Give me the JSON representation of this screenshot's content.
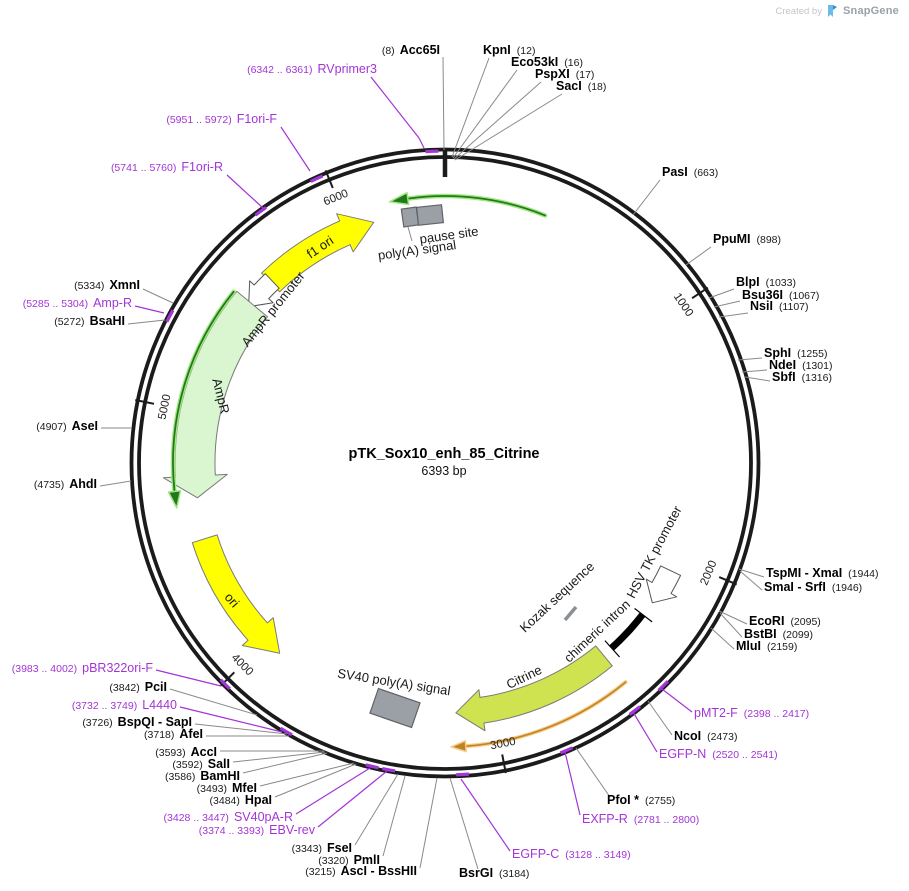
{
  "watermark": {
    "prefix": "Created by",
    "brand": "SnapGene"
  },
  "plasmid": {
    "name": "pTK_Sox10_enh_85_Citrine",
    "size": "6393 bp"
  },
  "ticks": [
    "1000",
    "2000",
    "3000",
    "4000",
    "5000",
    "6000"
  ],
  "enzymes": {
    "acc65i": {
      "pre": "(8)",
      "name": "Acc65I"
    },
    "kpni": {
      "name": "KpnI",
      "post": "(12)"
    },
    "eco53ki": {
      "name": "Eco53kI",
      "post": "(16)"
    },
    "pspxi": {
      "name": "PspXI",
      "post": "(17)"
    },
    "saci": {
      "name": "SacI",
      "post": "(18)"
    },
    "pasi": {
      "name": "PasI",
      "post": "(663)"
    },
    "ppumi": {
      "name": "PpuMI",
      "post": "(898)"
    },
    "blpi": {
      "name": "BlpI",
      "post": "(1033)"
    },
    "bsu36i": {
      "name": "Bsu36I",
      "post": "(1067)"
    },
    "nsii": {
      "name": "NsiI",
      "post": "(1107)"
    },
    "sphi": {
      "name": "SphI",
      "post": "(1255)"
    },
    "ndei": {
      "name": "NdeI",
      "post": "(1301)"
    },
    "sbfi": {
      "name": "SbfI",
      "post": "(1316)"
    },
    "tspmi_xmai": {
      "name": "TspMI - XmaI",
      "post": "(1944)"
    },
    "smai_srfi": {
      "name": "SmaI - SrfI",
      "post": "(1946)"
    },
    "ecori": {
      "name": "EcoRI",
      "post": "(2095)"
    },
    "bstbi": {
      "name": "BstBI",
      "post": "(2099)"
    },
    "mlui": {
      "name": "MluI",
      "post": "(2159)"
    },
    "ncoi": {
      "name": "NcoI",
      "post": "(2473)"
    },
    "pfoi": {
      "name": "PfoI *",
      "post": "(2755)"
    },
    "bsrgi": {
      "name": "BsrGI",
      "post": "(3184)"
    },
    "asci_bsshii": {
      "pre": "(3215)",
      "name": "AscI - BssHII"
    },
    "pmli": {
      "pre": "(3320)",
      "name": "PmlI"
    },
    "fsei": {
      "pre": "(3343)",
      "name": "FseI"
    },
    "hpai": {
      "pre": "(3484)",
      "name": "HpaI"
    },
    "mfei": {
      "pre": "(3493)",
      "name": "MfeI"
    },
    "bamhi": {
      "pre": "(3586)",
      "name": "BamHI"
    },
    "sali": {
      "pre": "(3592)",
      "name": "SalI"
    },
    "acci": {
      "pre": "(3593)",
      "name": "AccI"
    },
    "afei": {
      "pre": "(3718)",
      "name": "AfeI"
    },
    "bspqi_sapi": {
      "pre": "(3726)",
      "name": "BspQI - SapI"
    },
    "pcii": {
      "pre": "(3842)",
      "name": "PciI"
    },
    "ahdi": {
      "pre": "(4735)",
      "name": "AhdI"
    },
    "asei": {
      "pre": "(4907)",
      "name": "AseI"
    },
    "bsahi": {
      "pre": "(5272)",
      "name": "BsaHI"
    },
    "xmni": {
      "pre": "(5334)",
      "name": "XmnI"
    }
  },
  "primers": {
    "rvprimer3": {
      "pre": "(6342 .. 6361)",
      "name": "RVprimer3"
    },
    "f1ori_f": {
      "pre": "(5951 .. 5972)",
      "name": "F1ori-F"
    },
    "f1ori_r": {
      "pre": "(5741 .. 5760)",
      "name": "F1ori-R"
    },
    "amp_r": {
      "pre": "(5285 .. 5304)",
      "name": "Amp-R"
    },
    "pmt2_f": {
      "name": "pMT2-F",
      "post": "(2398 .. 2417)"
    },
    "egfp_n": {
      "name": "EGFP-N",
      "post": "(2520 .. 2541)"
    },
    "exfp_r": {
      "name": "EXFP-R",
      "post": "(2781 .. 2800)"
    },
    "egfp_c": {
      "name": "EGFP-C",
      "post": "(3128 .. 3149)"
    },
    "ebv_rev": {
      "pre": "(3374 .. 3393)",
      "name": "EBV-rev"
    },
    "sv40pa_r": {
      "pre": "(3428 .. 3447)",
      "name": "SV40pA-R"
    },
    "l4440": {
      "pre": "(3732 .. 3749)",
      "name": "L4440"
    },
    "pbr322ori_f": {
      "pre": "(3983 .. 4002)",
      "name": "pBR322ori-F"
    }
  },
  "features": {
    "f1_ori": "f1 ori",
    "ampr_promoter": "AmpR promoter",
    "ampr": "AmpR",
    "ori": "ori",
    "polya": "poly(A) signal",
    "pause": "pause site",
    "sv40_polya": "SV40 poly(A) signal",
    "citrine": "Citrine",
    "chimeric_intron": "chimeric intron",
    "kozak": "Kozak sequence",
    "hsv_tk": "HSV TK promoter"
  },
  "colors": {
    "primer": "#a335d6",
    "backbone": "#1b1b1b",
    "yellow": "#ffff00",
    "pale_green": "#d9f6d0",
    "green_core": "#23781f",
    "green_glow": "#9fe87e",
    "citrine": "#cfe24f",
    "orange_core": "#bf8326",
    "orange_glow": "#f8cd8a",
    "box_gray": "#9aa0a6"
  }
}
